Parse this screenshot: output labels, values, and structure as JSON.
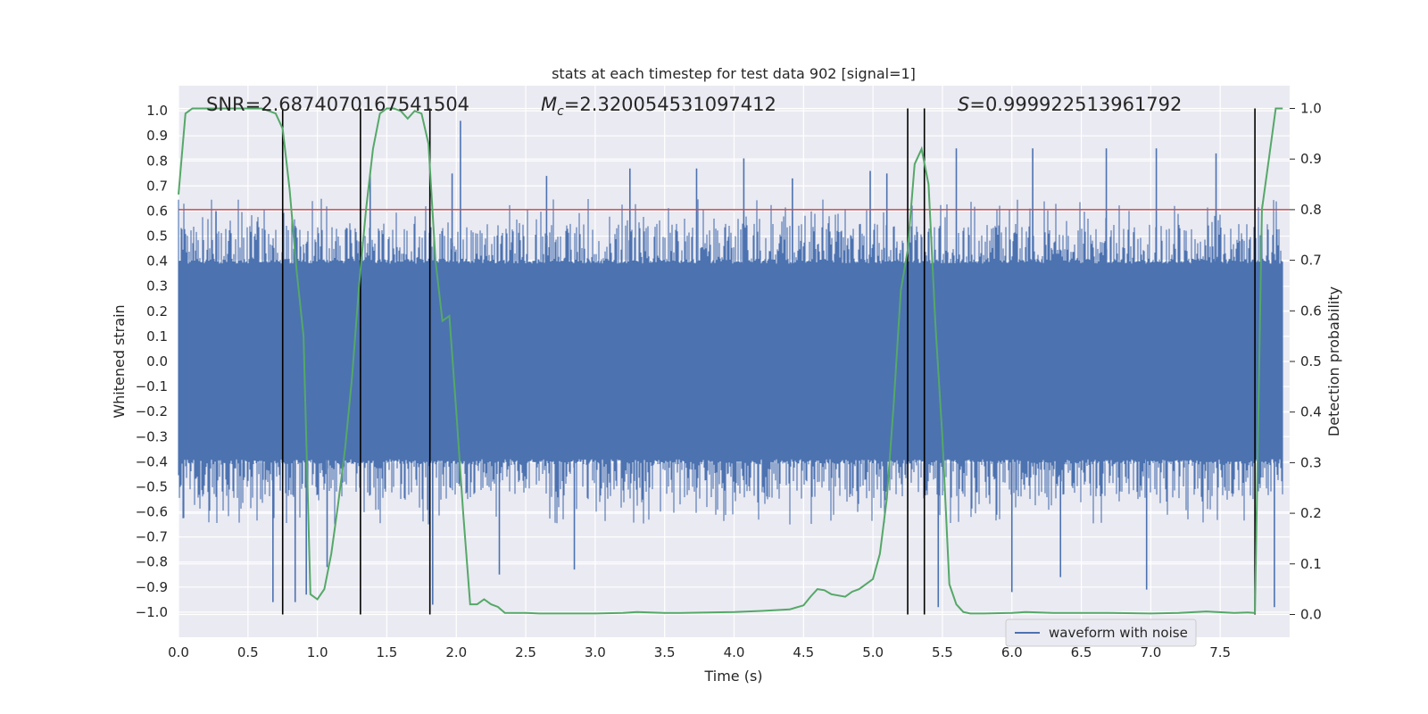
{
  "chart_data": {
    "type": "line",
    "title": "stats at each timestep for test data 902 [signal=1]",
    "xlabel": "Time (s)",
    "ylabel": "Whitened strain",
    "y2label": "Detection probability",
    "xlim": [
      0.0,
      8.0
    ],
    "ylim": [
      -1.1,
      1.1
    ],
    "y2lim": [
      -0.045,
      1.045
    ],
    "xticks": [
      "0.0",
      "0.5",
      "1.0",
      "1.5",
      "2.0",
      "2.5",
      "3.0",
      "3.5",
      "4.0",
      "4.5",
      "5.0",
      "5.5",
      "6.0",
      "6.5",
      "7.0",
      "7.5"
    ],
    "xtick_values": [
      0.0,
      0.5,
      1.0,
      1.5,
      2.0,
      2.5,
      3.0,
      3.5,
      4.0,
      4.5,
      5.0,
      5.5,
      6.0,
      6.5,
      7.0,
      7.5
    ],
    "yticks": [
      "1.0",
      "0.9",
      "0.8",
      "0.7",
      "0.6",
      "0.5",
      "0.4",
      "0.3",
      "0.2",
      "0.1",
      "0.0",
      "−0.1",
      "−0.2",
      "−0.3",
      "−0.4",
      "−0.5",
      "−0.6",
      "−0.7",
      "−0.8",
      "−0.9",
      "−1.0"
    ],
    "ytick_values": [
      1.0,
      0.9,
      0.8,
      0.7,
      0.6,
      0.5,
      0.4,
      0.3,
      0.2,
      0.1,
      0.0,
      -0.1,
      -0.2,
      -0.3,
      -0.4,
      -0.5,
      -0.6,
      -0.7,
      -0.8,
      -0.9,
      -1.0
    ],
    "y2ticks": [
      "1.0",
      "0.9",
      "0.8",
      "0.7",
      "0.6",
      "0.5",
      "0.4",
      "0.3",
      "0.2",
      "0.1",
      "0.0"
    ],
    "y2tick_values": [
      1.0,
      0.9,
      0.8,
      0.7,
      0.6,
      0.5,
      0.4,
      0.3,
      0.2,
      0.1,
      0.0
    ],
    "annotations": {
      "snr": "SNR=2.6874070167541504",
      "mc_symbol": "M",
      "mc_sub": "c",
      "mc_value": "=2.320054531097412",
      "s_symbol": "S",
      "s_value": "=0.999922513961792"
    },
    "threshold": {
      "value": 0.8,
      "axis": "y2",
      "color": "#c44e52"
    },
    "vertical_lines": [
      0.75,
      1.31,
      1.81,
      5.25,
      5.37,
      7.75
    ],
    "legend": {
      "label": "waveform with noise",
      "placement": "lower-right"
    },
    "grid": true,
    "colors": {
      "waveform": "#4c72b0",
      "probability": "#55a868",
      "vlines": "#000000",
      "background": "#eaeaf2",
      "grid": "#ffffff"
    },
    "series": [
      {
        "name": "waveform with noise",
        "axis": "y",
        "color": "#4c72b0",
        "style": "dense-noise",
        "t_range": [
          0.0,
          7.95
        ],
        "core_amplitude": 0.39,
        "peak_range": [
          0.5,
          0.65
        ],
        "spikes": [
          [
            0.27,
            0.6
          ],
          [
            0.68,
            -0.96
          ],
          [
            0.76,
            -0.38
          ],
          [
            0.84,
            -0.96
          ],
          [
            0.92,
            -0.93
          ],
          [
            1.07,
            -0.82
          ],
          [
            1.38,
            0.75
          ],
          [
            1.83,
            -0.97
          ],
          [
            1.97,
            0.75
          ],
          [
            2.03,
            0.96
          ],
          [
            2.31,
            -0.85
          ],
          [
            2.65,
            0.74
          ],
          [
            2.85,
            -0.83
          ],
          [
            3.25,
            0.77
          ],
          [
            3.73,
            0.77
          ],
          [
            4.07,
            0.81
          ],
          [
            4.42,
            0.73
          ],
          [
            4.98,
            0.76
          ],
          [
            5.1,
            0.75
          ],
          [
            5.47,
            -0.98
          ],
          [
            5.6,
            0.85
          ],
          [
            6.0,
            -0.92
          ],
          [
            6.15,
            0.85
          ],
          [
            6.35,
            -0.86
          ],
          [
            6.68,
            0.85
          ],
          [
            6.97,
            -0.91
          ],
          [
            7.04,
            0.85
          ],
          [
            7.47,
            0.83
          ],
          [
            7.89,
            -0.98
          ]
        ]
      },
      {
        "name": "",
        "axis": "y2",
        "color": "#55a868",
        "x": [
          0.0,
          0.05,
          0.1,
          0.15,
          0.2,
          0.25,
          0.3,
          0.35,
          0.4,
          0.45,
          0.5,
          0.55,
          0.6,
          0.65,
          0.7,
          0.75,
          0.8,
          0.85,
          0.9,
          0.95,
          1.0,
          1.05,
          1.1,
          1.15,
          1.2,
          1.25,
          1.3,
          1.35,
          1.4,
          1.45,
          1.5,
          1.55,
          1.6,
          1.65,
          1.7,
          1.75,
          1.8,
          1.85,
          1.9,
          1.95,
          2.0,
          2.05,
          2.1,
          2.15,
          2.2,
          2.25,
          2.3,
          2.35,
          2.4,
          2.5,
          2.6,
          2.8,
          3.0,
          3.2,
          3.3,
          3.4,
          3.5,
          3.6,
          3.8,
          4.0,
          4.2,
          4.4,
          4.5,
          4.55,
          4.6,
          4.65,
          4.7,
          4.8,
          4.85,
          4.9,
          5.0,
          5.05,
          5.1,
          5.15,
          5.2,
          5.25,
          5.3,
          5.35,
          5.4,
          5.45,
          5.5,
          5.55,
          5.6,
          5.65,
          5.7,
          5.8,
          6.0,
          6.1,
          6.3,
          6.5,
          6.7,
          7.0,
          7.2,
          7.4,
          7.6,
          7.7,
          7.75,
          7.8,
          7.85,
          7.9,
          7.95
        ],
        "values": [
          0.83,
          0.99,
          1.0,
          1.0,
          1.0,
          1.0,
          1.0,
          1.0,
          1.0,
          1.0,
          1.0,
          1.0,
          1.0,
          0.995,
          0.99,
          0.96,
          0.84,
          0.68,
          0.55,
          0.04,
          0.03,
          0.05,
          0.12,
          0.22,
          0.33,
          0.47,
          0.65,
          0.8,
          0.92,
          0.99,
          1.0,
          1.0,
          0.995,
          0.98,
          0.995,
          0.99,
          0.93,
          0.7,
          0.58,
          0.59,
          0.4,
          0.2,
          0.02,
          0.02,
          0.03,
          0.02,
          0.015,
          0.003,
          0.003,
          0.003,
          0.002,
          0.002,
          0.002,
          0.003,
          0.005,
          0.004,
          0.003,
          0.003,
          0.004,
          0.005,
          0.007,
          0.01,
          0.018,
          0.035,
          0.05,
          0.048,
          0.04,
          0.035,
          0.045,
          0.05,
          0.07,
          0.12,
          0.23,
          0.42,
          0.64,
          0.72,
          0.89,
          0.92,
          0.85,
          0.57,
          0.35,
          0.06,
          0.02,
          0.005,
          0.002,
          0.002,
          0.003,
          0.005,
          0.003,
          0.003,
          0.003,
          0.002,
          0.003,
          0.006,
          0.003,
          0.004,
          0.003,
          0.8,
          0.9,
          1.0,
          1.0
        ]
      }
    ]
  }
}
